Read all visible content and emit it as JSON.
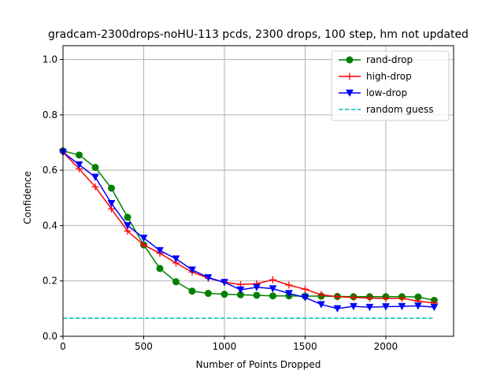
{
  "chart_data": {
    "type": "line",
    "title": "gradcam-2300drops-noHU-113 pcds, 2300 drops, 100 step, hm not updated",
    "xlabel": "Number of Points Dropped",
    "ylabel": "Confidence",
    "xlim": [
      0,
      2300
    ],
    "ylim": [
      0,
      1.05
    ],
    "xticks": [
      0,
      500,
      1000,
      1500,
      2000
    ],
    "yticks": [
      0.0,
      0.2,
      0.4,
      0.6,
      0.8,
      1.0
    ],
    "xtick_labels": [
      "0",
      "500",
      "1000",
      "1500",
      "2000"
    ],
    "ytick_labels": [
      "0.0",
      "0.2",
      "0.4",
      "0.6",
      "0.8",
      "1.0"
    ],
    "grid": true,
    "legend_position": "top-right",
    "x": [
      0,
      100,
      200,
      300,
      400,
      500,
      600,
      700,
      800,
      900,
      1000,
      1100,
      1200,
      1300,
      1400,
      1500,
      1600,
      1700,
      1800,
      1900,
      2000,
      2100,
      2200,
      2300
    ],
    "series": [
      {
        "name": "rand-drop",
        "color": "#008000",
        "marker": "circle",
        "linestyle": "solid",
        "values": [
          0.67,
          0.655,
          0.61,
          0.535,
          0.43,
          0.33,
          0.245,
          0.197,
          0.163,
          0.155,
          0.152,
          0.15,
          0.148,
          0.146,
          0.146,
          0.145,
          0.145,
          0.144,
          0.143,
          0.143,
          0.143,
          0.143,
          0.142,
          0.13
        ]
      },
      {
        "name": "high-drop",
        "color": "#ff0000",
        "marker": "plus",
        "linestyle": "solid",
        "values": [
          0.665,
          0.605,
          0.54,
          0.46,
          0.38,
          0.33,
          0.3,
          0.265,
          0.232,
          0.21,
          0.195,
          0.187,
          0.19,
          0.204,
          0.185,
          0.17,
          0.15,
          0.143,
          0.14,
          0.138,
          0.137,
          0.137,
          0.127,
          0.12
        ]
      },
      {
        "name": "low-drop",
        "color": "#0000ff",
        "marker": "triangle-down",
        "linestyle": "solid",
        "values": [
          0.665,
          0.62,
          0.575,
          0.48,
          0.4,
          0.355,
          0.31,
          0.28,
          0.24,
          0.212,
          0.195,
          0.168,
          0.177,
          0.172,
          0.155,
          0.14,
          0.115,
          0.1,
          0.108,
          0.105,
          0.107,
          0.108,
          0.11,
          0.105
        ]
      },
      {
        "name": "random guess",
        "color": "#00bfbf",
        "marker": "none",
        "linestyle": "dashed",
        "values": [
          0.065,
          0.065,
          0.065,
          0.065,
          0.065,
          0.065,
          0.065,
          0.065,
          0.065,
          0.065,
          0.065,
          0.065,
          0.065,
          0.065,
          0.065,
          0.065,
          0.065,
          0.065,
          0.065,
          0.065,
          0.065,
          0.065,
          0.065,
          0.065
        ]
      }
    ]
  }
}
